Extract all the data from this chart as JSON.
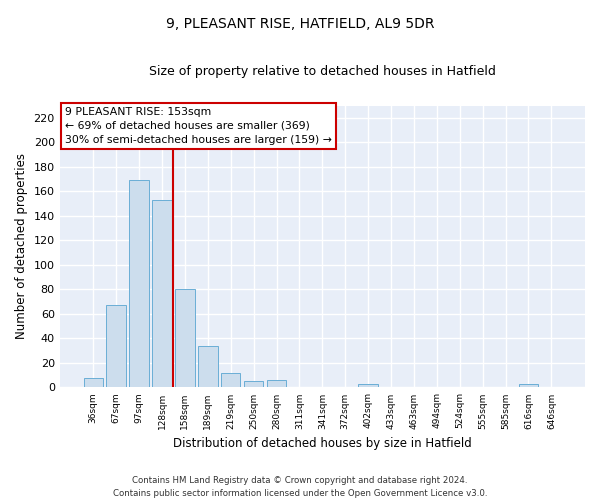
{
  "title1": "9, PLEASANT RISE, HATFIELD, AL9 5DR",
  "title2": "Size of property relative to detached houses in Hatfield",
  "xlabel": "Distribution of detached houses by size in Hatfield",
  "ylabel": "Number of detached properties",
  "categories": [
    "36sqm",
    "67sqm",
    "97sqm",
    "128sqm",
    "158sqm",
    "189sqm",
    "219sqm",
    "250sqm",
    "280sqm",
    "311sqm",
    "341sqm",
    "372sqm",
    "402sqm",
    "433sqm",
    "463sqm",
    "494sqm",
    "524sqm",
    "555sqm",
    "585sqm",
    "616sqm",
    "646sqm"
  ],
  "values": [
    8,
    67,
    169,
    153,
    80,
    34,
    12,
    5,
    6,
    0,
    0,
    0,
    3,
    0,
    0,
    0,
    0,
    0,
    0,
    3,
    0
  ],
  "bar_color": "#ccdded",
  "bar_edge_color": "#6aaed6",
  "vline_color": "#cc0000",
  "annotation_text": "9 PLEASANT RISE: 153sqm\n← 69% of detached houses are smaller (369)\n30% of semi-detached houses are larger (159) →",
  "annotation_box_color": "#ffffff",
  "annotation_box_edge": "#cc0000",
  "bg_color": "#e8eef8",
  "grid_color": "#ffffff",
  "ylim": [
    0,
    230
  ],
  "yticks": [
    0,
    20,
    40,
    60,
    80,
    100,
    120,
    140,
    160,
    180,
    200,
    220
  ],
  "footnote": "Contains HM Land Registry data © Crown copyright and database right 2024.\nContains public sector information licensed under the Open Government Licence v3.0."
}
